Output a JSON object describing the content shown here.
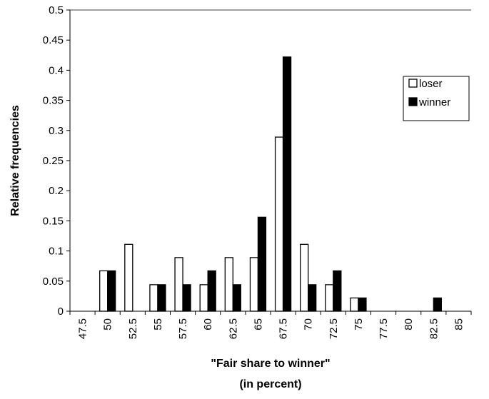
{
  "chart_data": {
    "type": "bar",
    "title": "",
    "xlabel_lines": [
      "\"Fair share to winner\"",
      "(in percent)"
    ],
    "ylabel": "Relative frequencies",
    "categories": [
      "47.5",
      "50",
      "52.5",
      "55",
      "57.5",
      "60",
      "62.5",
      "65",
      "67.5",
      "70",
      "72.5",
      "75",
      "77.5",
      "80",
      "82.5",
      "85"
    ],
    "series": [
      {
        "name": "loser",
        "color": "#ffffff",
        "values": [
          0,
          0.067,
          0.111,
          0.044,
          0.089,
          0.044,
          0.089,
          0.089,
          0.289,
          0.111,
          0.044,
          0.022,
          0,
          0,
          0,
          0
        ]
      },
      {
        "name": "winner",
        "color": "#000000",
        "values": [
          0,
          0.067,
          0,
          0.044,
          0.044,
          0.067,
          0.044,
          0.156,
          0.422,
          0.044,
          0.067,
          0.022,
          0,
          0,
          0.022,
          0
        ]
      }
    ],
    "yticks": [
      "0",
      "0.05",
      "0.1",
      "0.15",
      "0.2",
      "0.25",
      "0.3",
      "0.35",
      "0.4",
      "0.45",
      "0.5"
    ],
    "ylim": [
      0,
      0.5
    ],
    "grid": false,
    "legend_position": "right"
  }
}
